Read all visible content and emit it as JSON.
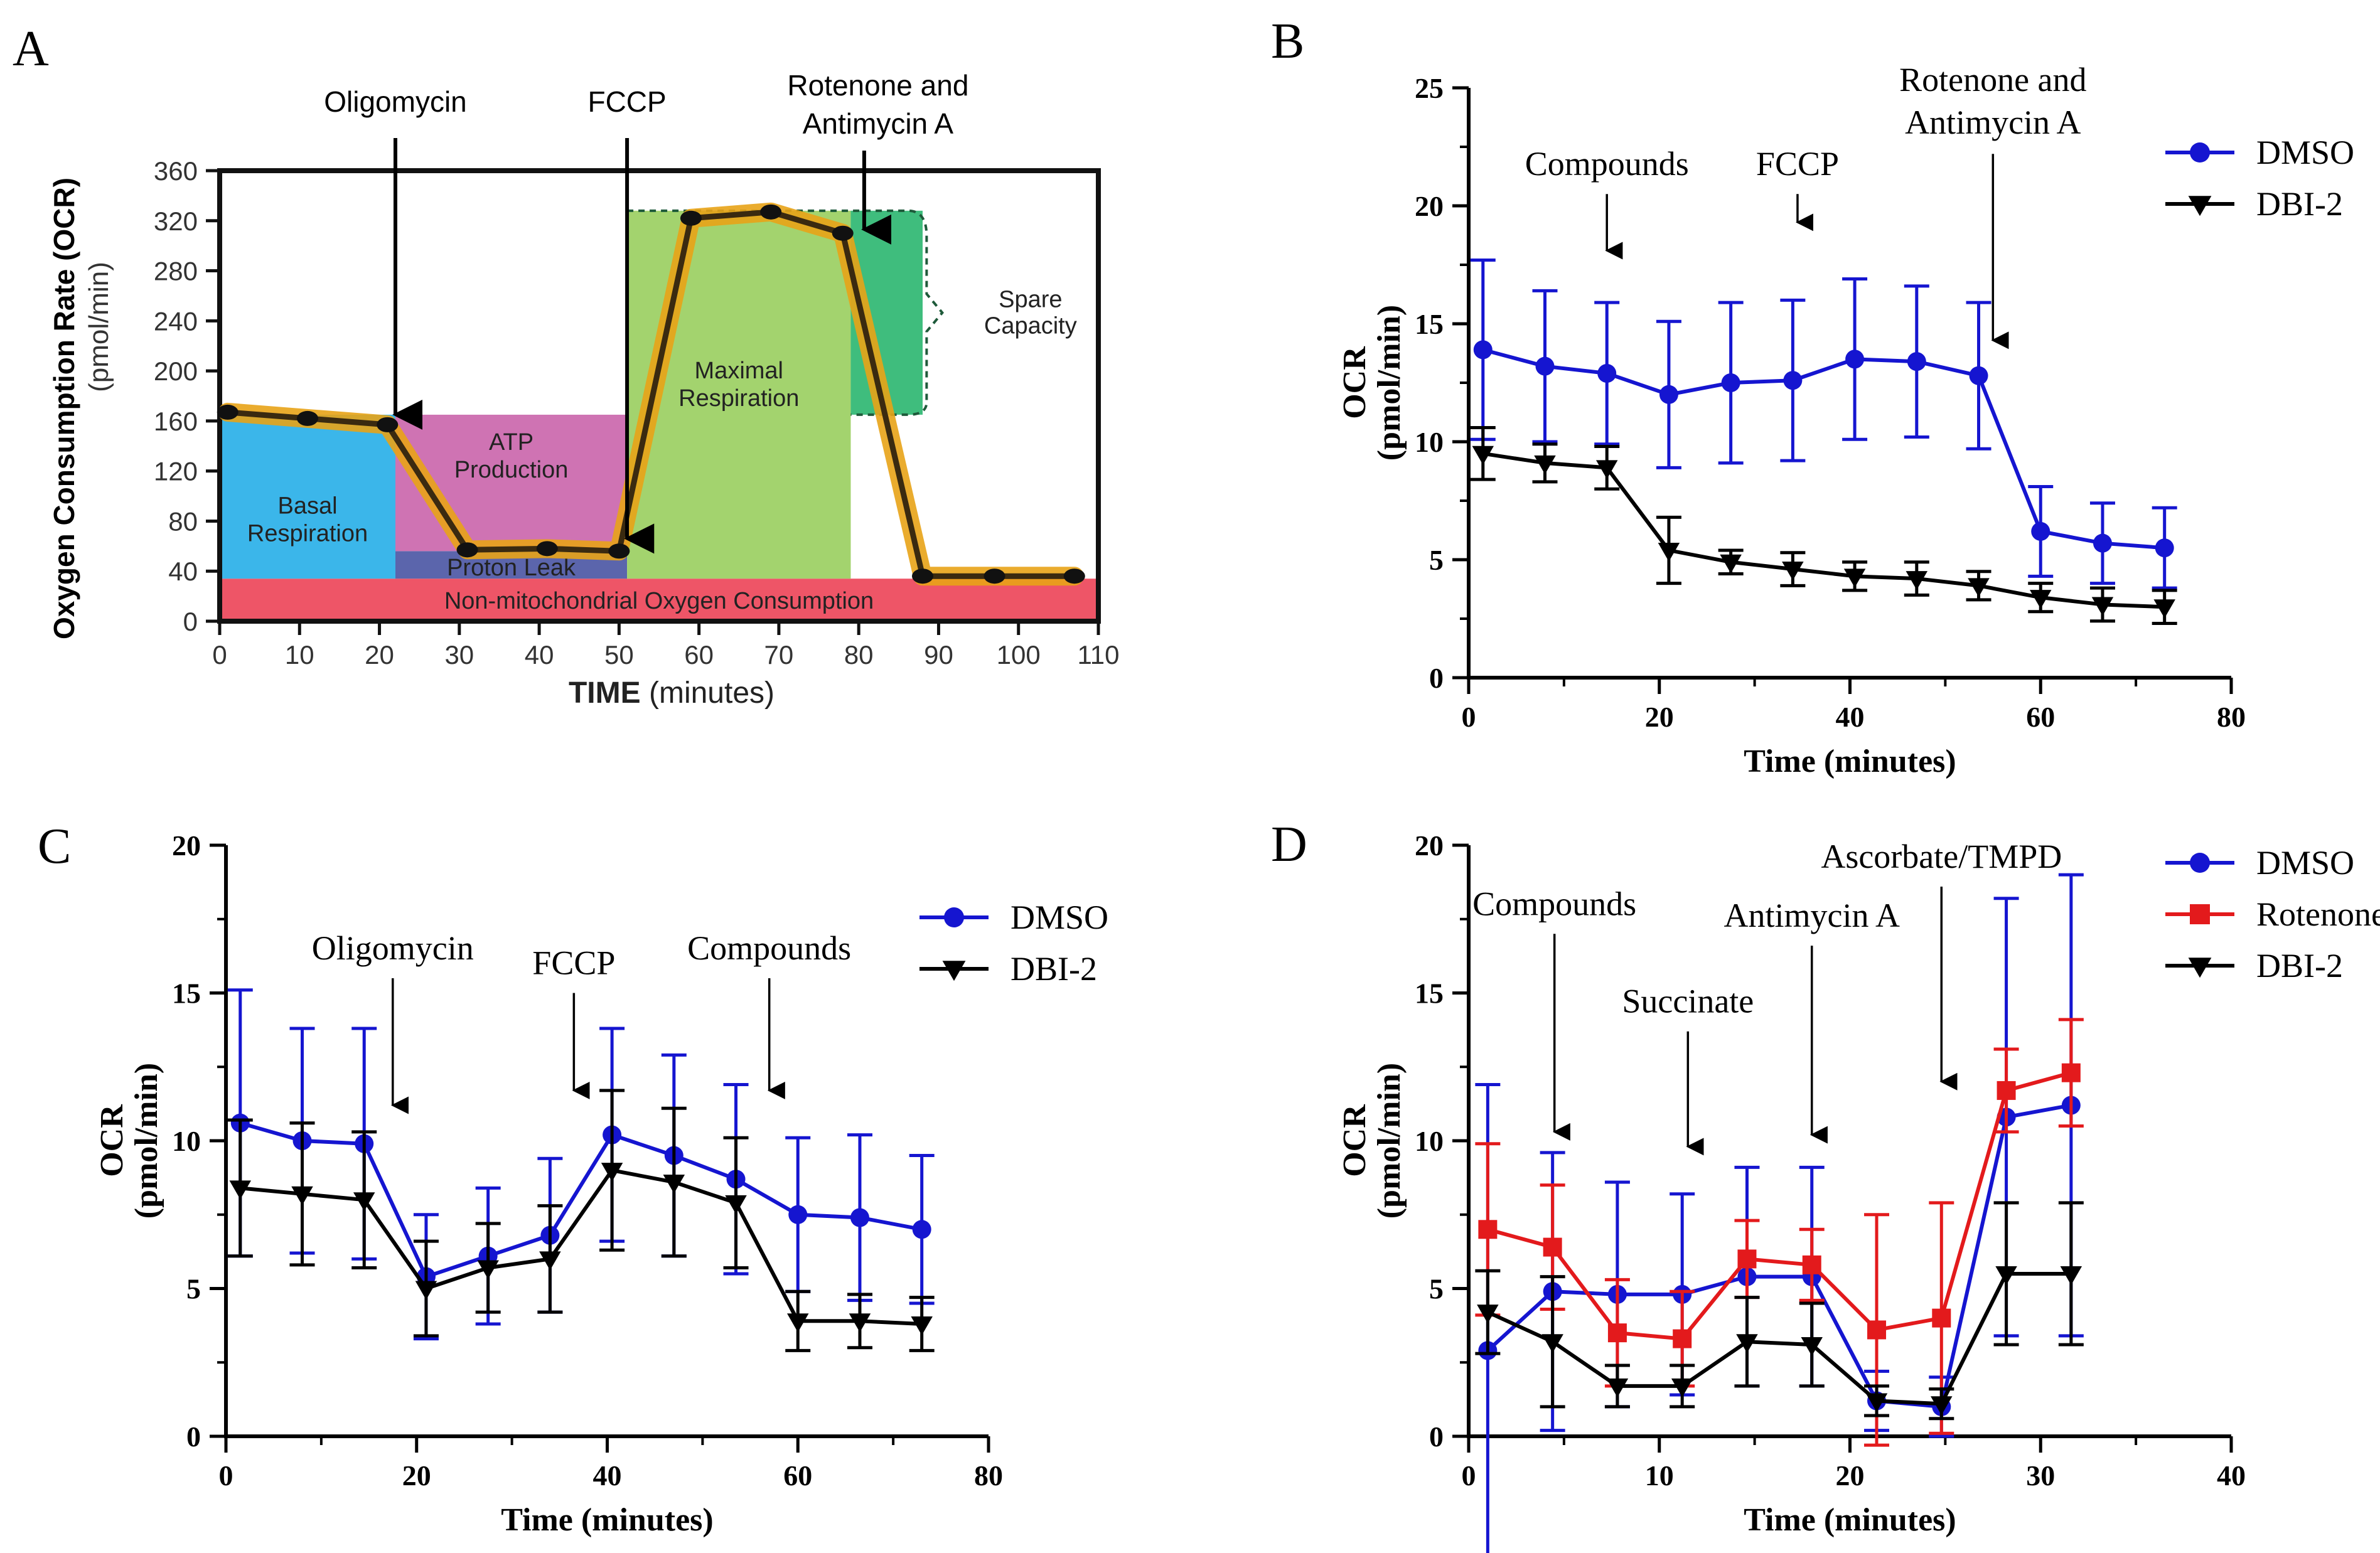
{
  "chart_data": [
    {
      "id": "A",
      "panel_label": "A",
      "type": "line",
      "title": "",
      "xlabel_bold": "TIME",
      "xlabel_rest": "(minutes)",
      "ylabel": "Oxygen Consumption Rate (OCR)",
      "ylabel_units": "(pmol/min)",
      "xlim": [
        0,
        110
      ],
      "ylim": [
        0,
        360
      ],
      "xticks": [
        0,
        10,
        20,
        30,
        40,
        50,
        60,
        70,
        80,
        90,
        100,
        110
      ],
      "yticks": [
        0,
        40,
        80,
        120,
        160,
        200,
        240,
        280,
        320,
        360
      ],
      "series": [
        {
          "name": "OCR",
          "x": [
            1,
            11,
            21,
            31,
            41,
            50,
            59,
            69,
            78,
            88,
            97,
            107
          ],
          "values": [
            167,
            162,
            157,
            57,
            58,
            56,
            322,
            327,
            310,
            36,
            36,
            36
          ]
        }
      ],
      "regions": [
        {
          "name": "non-mito",
          "label": "Non-mitochondrial Oxygen Consumption",
          "x": [
            0,
            110
          ],
          "y": [
            0,
            34
          ],
          "color": "#ee5567"
        },
        {
          "name": "basal",
          "label": "Basal Respiration",
          "x": [
            0,
            22
          ],
          "y": [
            34,
            165
          ],
          "color": "#3bb6ea"
        },
        {
          "name": "proton-leak",
          "label": "Proton Leak",
          "x": [
            22,
            51
          ],
          "y": [
            34,
            56
          ],
          "color": "#5b65ac"
        },
        {
          "name": "atp",
          "label": "ATP Production",
          "x": [
            22,
            51
          ],
          "y": [
            56,
            165
          ],
          "color": "#cf73b3"
        },
        {
          "name": "maximal",
          "label": "Maximal Respiration",
          "x": [
            51,
            79
          ],
          "y": [
            34,
            328
          ],
          "color": "#a3d36e"
        },
        {
          "name": "spare",
          "label": "Spare Capacity",
          "x": [
            79,
            88
          ],
          "y": [
            165,
            328
          ],
          "color": "#3fbd7d"
        }
      ],
      "region_labels": {
        "basal_1": "Basal",
        "basal_2": "Respiration",
        "atp_1": "ATP",
        "atp_2": "Production",
        "proton": "Proton Leak",
        "max_1": "Maximal",
        "max_2": "Respiration",
        "spare_1": "Spare",
        "spare_2": "Capacity",
        "nonmito": "Non-mitochondrial Oxygen Consumption"
      },
      "annotations": [
        {
          "text": "Oligomycin",
          "x": 22
        },
        {
          "text": "FCCP",
          "x": 51
        },
        {
          "text": "Rotenone and",
          "text2": "Antimycin A",
          "x": 81
        }
      ]
    },
    {
      "id": "B",
      "panel_label": "B",
      "type": "line",
      "xlabel": "Time (minutes)",
      "ylabel_1": "OCR",
      "ylabel_2": "(pmol/min)",
      "xlim": [
        0,
        80
      ],
      "ylim": [
        0,
        25
      ],
      "xticks": [
        0,
        20,
        40,
        60,
        80
      ],
      "yticks": [
        0,
        5,
        10,
        15,
        20,
        25
      ],
      "legend": "top-right",
      "series": [
        {
          "name": "DMSO",
          "color": "#1515d0",
          "marker": "circle",
          "x": [
            1.5,
            8,
            14.5,
            21,
            27.5,
            34,
            40.5,
            47,
            53.5,
            60,
            66.5,
            73
          ],
          "values": [
            13.9,
            13.2,
            12.9,
            12.0,
            12.5,
            12.6,
            13.5,
            13.4,
            12.8,
            6.2,
            5.7,
            5.5
          ],
          "err": [
            3.8,
            3.2,
            3.0,
            3.1,
            3.4,
            3.4,
            3.4,
            3.2,
            3.1,
            1.9,
            1.7,
            1.7
          ]
        },
        {
          "name": "DBI-2",
          "color": "#000000",
          "marker": "triangle-down",
          "x": [
            1.5,
            8,
            14.5,
            21,
            27.5,
            34,
            40.5,
            47,
            53.5,
            60,
            66.5,
            73
          ],
          "values": [
            9.5,
            9.1,
            8.9,
            5.4,
            4.9,
            4.6,
            4.3,
            4.2,
            3.9,
            3.4,
            3.1,
            3.0
          ],
          "err": [
            1.1,
            0.8,
            0.9,
            1.4,
            0.5,
            0.7,
            0.6,
            0.7,
            0.6,
            0.6,
            0.7,
            0.7
          ]
        }
      ],
      "annotations": [
        {
          "text": "Compounds",
          "x": 14.5,
          "arrow_from": 20.5,
          "arrow_to": 18.1
        },
        {
          "text": "FCCP",
          "x": 34.5,
          "arrow_from": 20.5,
          "arrow_to": 19.3
        },
        {
          "text": "Rotenone and",
          "text2": "Antimycin A",
          "x": 55,
          "arrow_from": 22.2,
          "arrow_to": 14.3
        }
      ]
    },
    {
      "id": "C",
      "panel_label": "C",
      "type": "line",
      "xlabel": "Time (minutes)",
      "ylabel_1": "OCR",
      "ylabel_2": "(pmol/min)",
      "xlim": [
        0,
        80
      ],
      "ylim": [
        0,
        20
      ],
      "xticks": [
        0,
        20,
        40,
        60,
        80
      ],
      "yticks": [
        0,
        5,
        10,
        15,
        20
      ],
      "legend": "top-right",
      "series": [
        {
          "name": "DMSO",
          "color": "#1515d0",
          "marker": "circle",
          "x": [
            1.5,
            8,
            14.5,
            21,
            27.5,
            34,
            40.5,
            47,
            53.5,
            60,
            66.5,
            73
          ],
          "values": [
            10.6,
            10.0,
            9.9,
            5.4,
            6.1,
            6.8,
            10.2,
            9.5,
            8.7,
            7.5,
            7.4,
            7.0
          ],
          "err": [
            4.5,
            3.8,
            3.9,
            2.1,
            2.3,
            2.6,
            3.6,
            3.4,
            3.2,
            2.6,
            2.8,
            2.5
          ]
        },
        {
          "name": "DBI-2",
          "color": "#000000",
          "marker": "triangle-down",
          "x": [
            1.5,
            8,
            14.5,
            21,
            27.5,
            34,
            40.5,
            47,
            53.5,
            60,
            66.5,
            73
          ],
          "values": [
            8.4,
            8.2,
            8.0,
            5.0,
            5.7,
            6.0,
            9.0,
            8.6,
            7.9,
            3.9,
            3.9,
            3.8
          ],
          "err": [
            2.3,
            2.4,
            2.3,
            1.6,
            1.5,
            1.8,
            2.7,
            2.5,
            2.2,
            1.0,
            0.9,
            0.9
          ]
        }
      ],
      "annotations": [
        {
          "text": "Oligomycin",
          "x": 17.5,
          "arrow_from": 15.5,
          "arrow_to": 11.2
        },
        {
          "text": "FCCP",
          "x": 36.5,
          "arrow_from": 15.0,
          "arrow_to": 11.7
        },
        {
          "text": "Compounds",
          "x": 57,
          "arrow_from": 15.5,
          "arrow_to": 11.7
        }
      ]
    },
    {
      "id": "D",
      "panel_label": "D",
      "type": "line",
      "xlabel": "Time (minutes)",
      "ylabel_1": "OCR",
      "ylabel_2": "(pmol/min)",
      "xlim": [
        0,
        40
      ],
      "ylim": [
        0,
        20
      ],
      "xticks": [
        0,
        10,
        20,
        30,
        40
      ],
      "yticks": [
        0,
        5,
        10,
        15,
        20
      ],
      "legend": "top-right",
      "series": [
        {
          "name": "DMSO",
          "color": "#1515d0",
          "marker": "circle",
          "x": [
            1,
            4.4,
            7.8,
            11.2,
            14.6,
            18,
            21.4,
            24.8,
            28.2,
            31.6
          ],
          "values": [
            2.9,
            4.9,
            4.8,
            4.8,
            5.4,
            5.4,
            1.2,
            1.0,
            10.8,
            11.2
          ],
          "err": [
            9.0,
            4.7,
            3.8,
            3.4,
            3.7,
            3.7,
            1.0,
            1.0,
            7.4,
            7.8
          ]
        },
        {
          "name": "Rotenone",
          "color": "#e31a1c",
          "marker": "square",
          "x": [
            1,
            4.4,
            7.8,
            11.2,
            14.6,
            18,
            21.4,
            24.8,
            28.2,
            31.6
          ],
          "values": [
            7.0,
            6.4,
            3.5,
            3.3,
            6.0,
            5.8,
            3.6,
            4.0,
            11.7,
            12.3
          ],
          "err": [
            2.9,
            2.1,
            1.8,
            1.6,
            1.3,
            1.2,
            3.9,
            3.9,
            1.4,
            1.8
          ]
        },
        {
          "name": "DBI-2",
          "color": "#000000",
          "marker": "triangle-down",
          "x": [
            1,
            4.4,
            7.8,
            11.2,
            14.6,
            18,
            21.4,
            24.8,
            28.2,
            31.6
          ],
          "values": [
            4.2,
            3.2,
            1.7,
            1.7,
            3.2,
            3.1,
            1.2,
            1.1,
            5.5,
            5.5
          ],
          "err": [
            1.4,
            2.2,
            0.7,
            0.7,
            1.5,
            1.4,
            0.5,
            0.5,
            2.4,
            2.4
          ]
        }
      ],
      "annotations": [
        {
          "text": "Compounds",
          "x": 4.5,
          "arrow_from": 17.0,
          "arrow_to": 10.3
        },
        {
          "text": "Succinate",
          "x": 11.5,
          "arrow_from": 13.7,
          "arrow_to": 9.8
        },
        {
          "text": "Antimycin A",
          "x": 18,
          "arrow_from": 16.6,
          "arrow_to": 10.2
        },
        {
          "text": "Ascorbate/TMPD",
          "x": 24.8,
          "arrow_from": 18.6,
          "arrow_to": 12.0
        }
      ]
    }
  ]
}
